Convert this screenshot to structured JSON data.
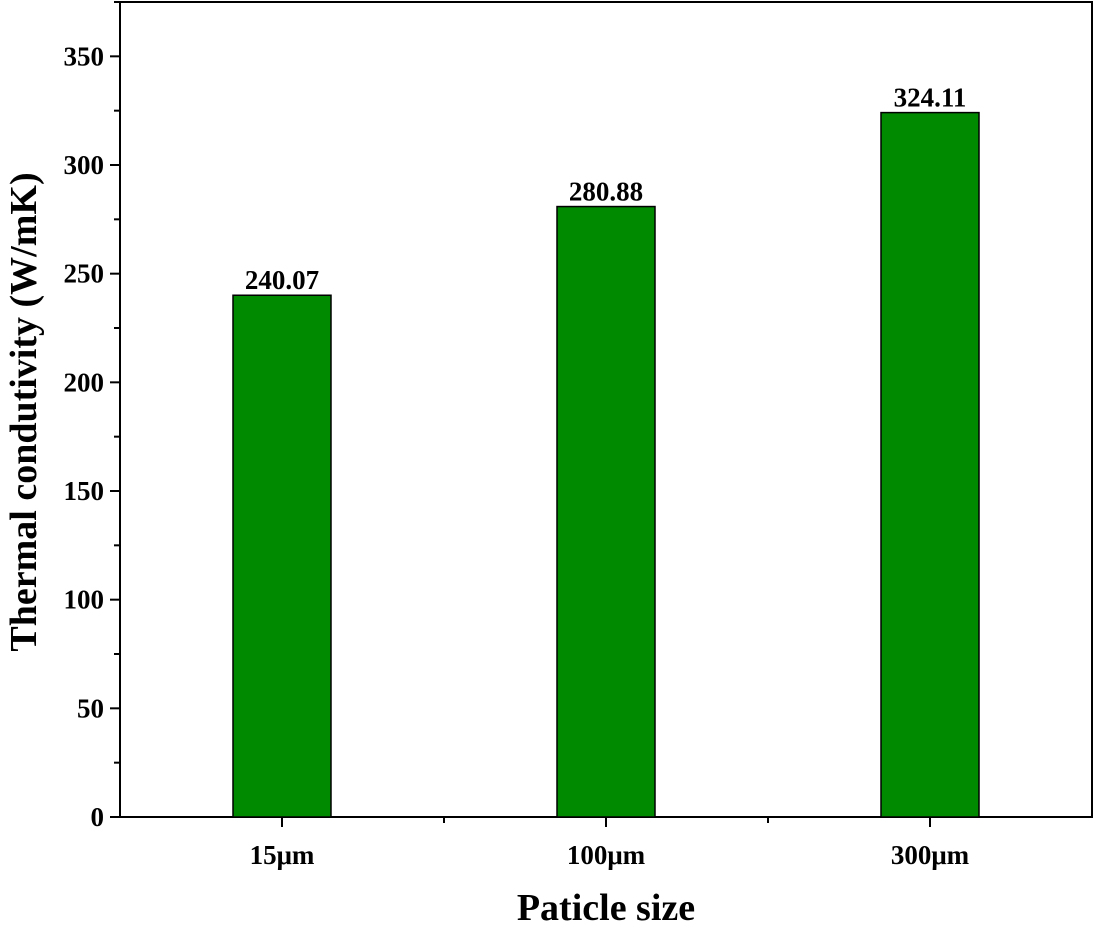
{
  "chart_data": {
    "type": "bar",
    "categories": [
      "15μm",
      "100μm",
      "300μm"
    ],
    "values": [
      240.07,
      280.88,
      324.11
    ],
    "value_labels": [
      "240.07",
      "280.88",
      "324.11"
    ],
    "title": "",
    "xlabel": "Paticle size",
    "ylabel": "Thermal condutivity (W/mK)",
    "ylim": [
      0,
      375
    ],
    "yticks": [
      0,
      50,
      100,
      150,
      200,
      250,
      300,
      350
    ],
    "ytick_labels": [
      "0",
      "50",
      "100",
      "150",
      "200",
      "250",
      "300",
      "350"
    ],
    "minor_tick_step": 25,
    "bar_color": "#008a00",
    "grid": false,
    "legend": "none"
  }
}
